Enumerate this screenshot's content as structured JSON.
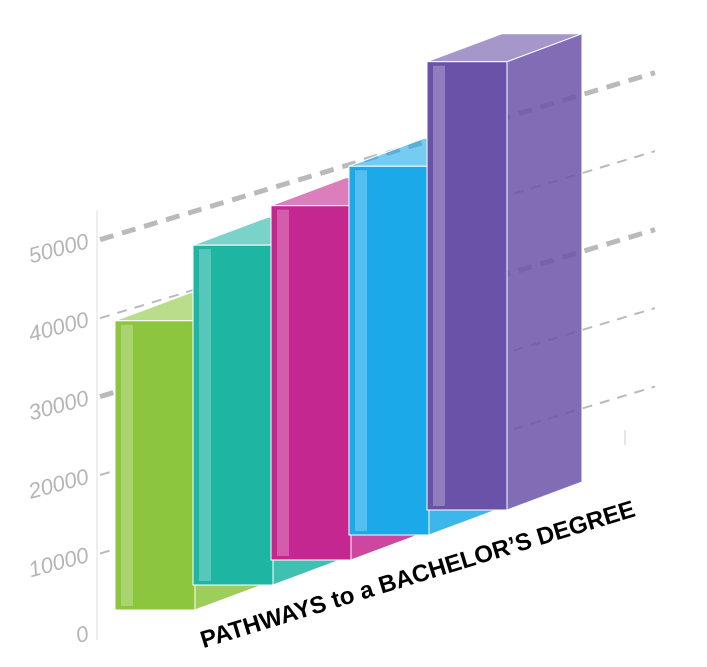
{
  "chart_data": {
    "type": "bar",
    "title": "PATHWAYS to a BACHELOR’S DEGREE",
    "categories": [
      null,
      null,
      null,
      null,
      null
    ],
    "series": [
      {
        "name": null,
        "colors": [
          "#8cc63f",
          "#1fb5a3",
          "#c4278f",
          "#1ba9e9",
          "#6b52a9"
        ],
        "values": [
          40000,
          47000,
          49000,
          51000,
          62000
        ]
      }
    ],
    "ylim": [
      0,
      65000
    ],
    "yticks": [
      0,
      10000,
      20000,
      30000,
      40000,
      50000
    ],
    "grid": true
  }
}
